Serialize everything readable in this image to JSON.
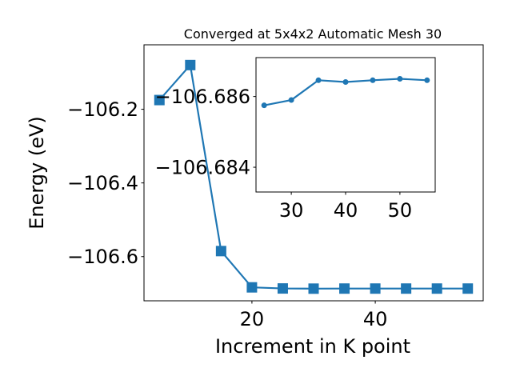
{
  "chart_data": [
    {
      "type": "line",
      "title": "Converged at 5x4x2 Automatic Mesh 30",
      "xlabel": "Increment in K point",
      "ylabel": "Energy (eV)",
      "xlim": [
        2.5,
        57.5
      ],
      "ylim": [
        -106.72,
        -106.025
      ],
      "x_ticks": [
        20,
        40
      ],
      "x_tick_labels": [
        "20",
        "40"
      ],
      "y_ticks": [
        -106.6,
        -106.4,
        -106.2
      ],
      "y_tick_labels": [
        "−106.6",
        "−106.4",
        "−106.2"
      ],
      "marker": "square",
      "color": "#1f77b4",
      "grid": false,
      "series": [
        {
          "x": [
            5,
            10,
            15,
            20,
            25,
            30,
            35,
            40,
            45,
            50,
            55
          ],
          "y": [
            -106.175,
            -106.08,
            -106.585,
            -106.6835,
            -106.6865,
            -106.687,
            -106.6868,
            -106.6868,
            -106.6868,
            -106.6868,
            -106.6868
          ]
        }
      ]
    },
    {
      "type": "line",
      "title": "",
      "xlabel": "",
      "ylabel": "",
      "xlim": [
        23.5,
        56.5
      ],
      "ylim": [
        -106.6833,
        -106.6871
      ],
      "x_ticks": [
        30,
        40,
        50
      ],
      "x_tick_labels": [
        "30",
        "40",
        "50"
      ],
      "y_ticks": [
        -106.686,
        -106.684
      ],
      "y_tick_labels": [
        "−106.686",
        "−106.684"
      ],
      "marker": "circle",
      "color": "#1f77b4",
      "grid": false,
      "series": [
        {
          "x": [
            25,
            30,
            35,
            40,
            45,
            50,
            55
          ],
          "y": [
            -106.68575,
            -106.6859,
            -106.68646,
            -106.68641,
            -106.68646,
            -106.6865,
            -106.68646
          ]
        }
      ]
    }
  ]
}
